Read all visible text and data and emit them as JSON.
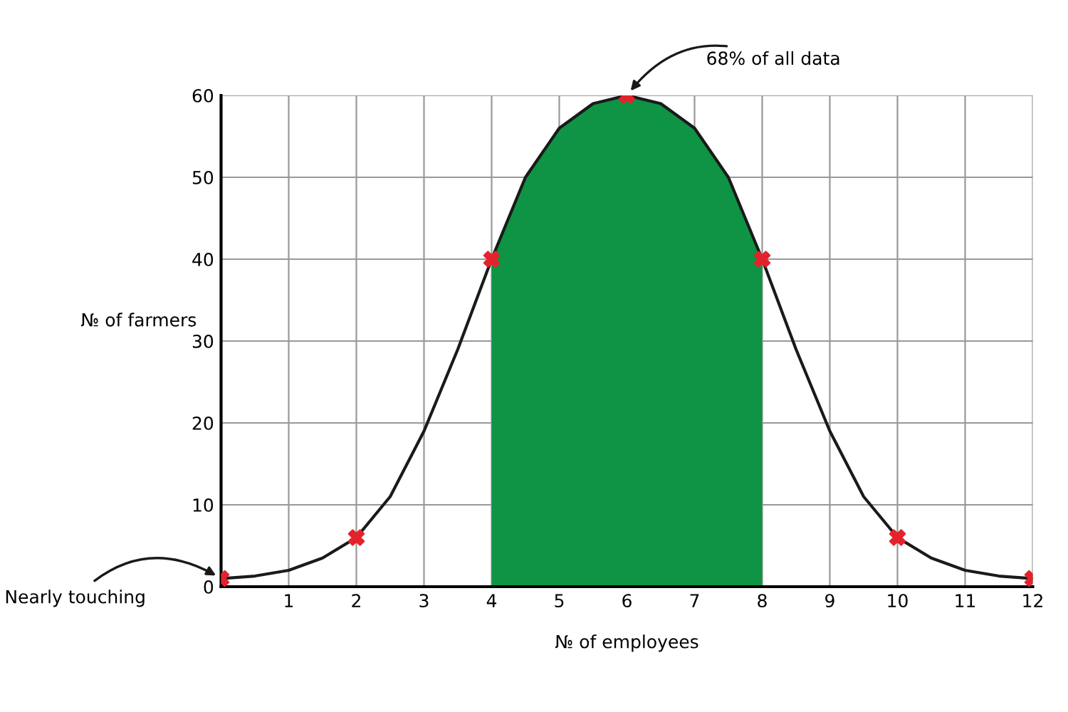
{
  "chart_data": {
    "type": "line",
    "xlabel": "№ of employees",
    "ylabel": "№ of farmers",
    "xlim": [
      0,
      12
    ],
    "ylim": [
      0,
      60
    ],
    "xticks": [
      {
        "value": 0,
        "label": null
      },
      1,
      2,
      3,
      4,
      5,
      6,
      7,
      8,
      9,
      10,
      11,
      12
    ],
    "yticks": [
      0,
      10,
      20,
      30,
      40,
      50,
      60
    ],
    "grid": true,
    "series": [
      {
        "type": "area",
        "color": "#0e9444",
        "x": [
          4,
          4.5,
          5,
          5.5,
          6,
          6.5,
          7,
          7.5,
          8
        ],
        "values": [
          40,
          50,
          56,
          59,
          60,
          59,
          56,
          50,
          40
        ]
      },
      {
        "color": "#1a1a1a",
        "x": [
          0,
          0.5,
          1,
          1.5,
          2,
          2.5,
          3,
          3.5,
          4,
          4.5,
          5,
          5.5,
          6,
          6.5,
          7,
          7.5,
          8,
          8.5,
          9,
          9.5,
          10,
          10.5,
          11,
          11.5,
          12
        ],
        "values": [
          1,
          1.3,
          2,
          3.5,
          6,
          11,
          19,
          29,
          40,
          50,
          56,
          59,
          60,
          59,
          56,
          50,
          40,
          29,
          19,
          11,
          6,
          3.5,
          2,
          1.3,
          1
        ]
      },
      {
        "type": "scatter",
        "color": "#e3232c",
        "marker": "cross",
        "x": [
          0,
          2,
          4,
          6,
          8,
          10,
          12
        ],
        "values": [
          1,
          6,
          40,
          60,
          40,
          6,
          1
        ]
      }
    ],
    "annotations": [
      {
        "text": "68% of all data",
        "x": 6,
        "y": 60
      },
      {
        "text": "Nearly touching",
        "x": 0,
        "y": 1
      }
    ]
  }
}
